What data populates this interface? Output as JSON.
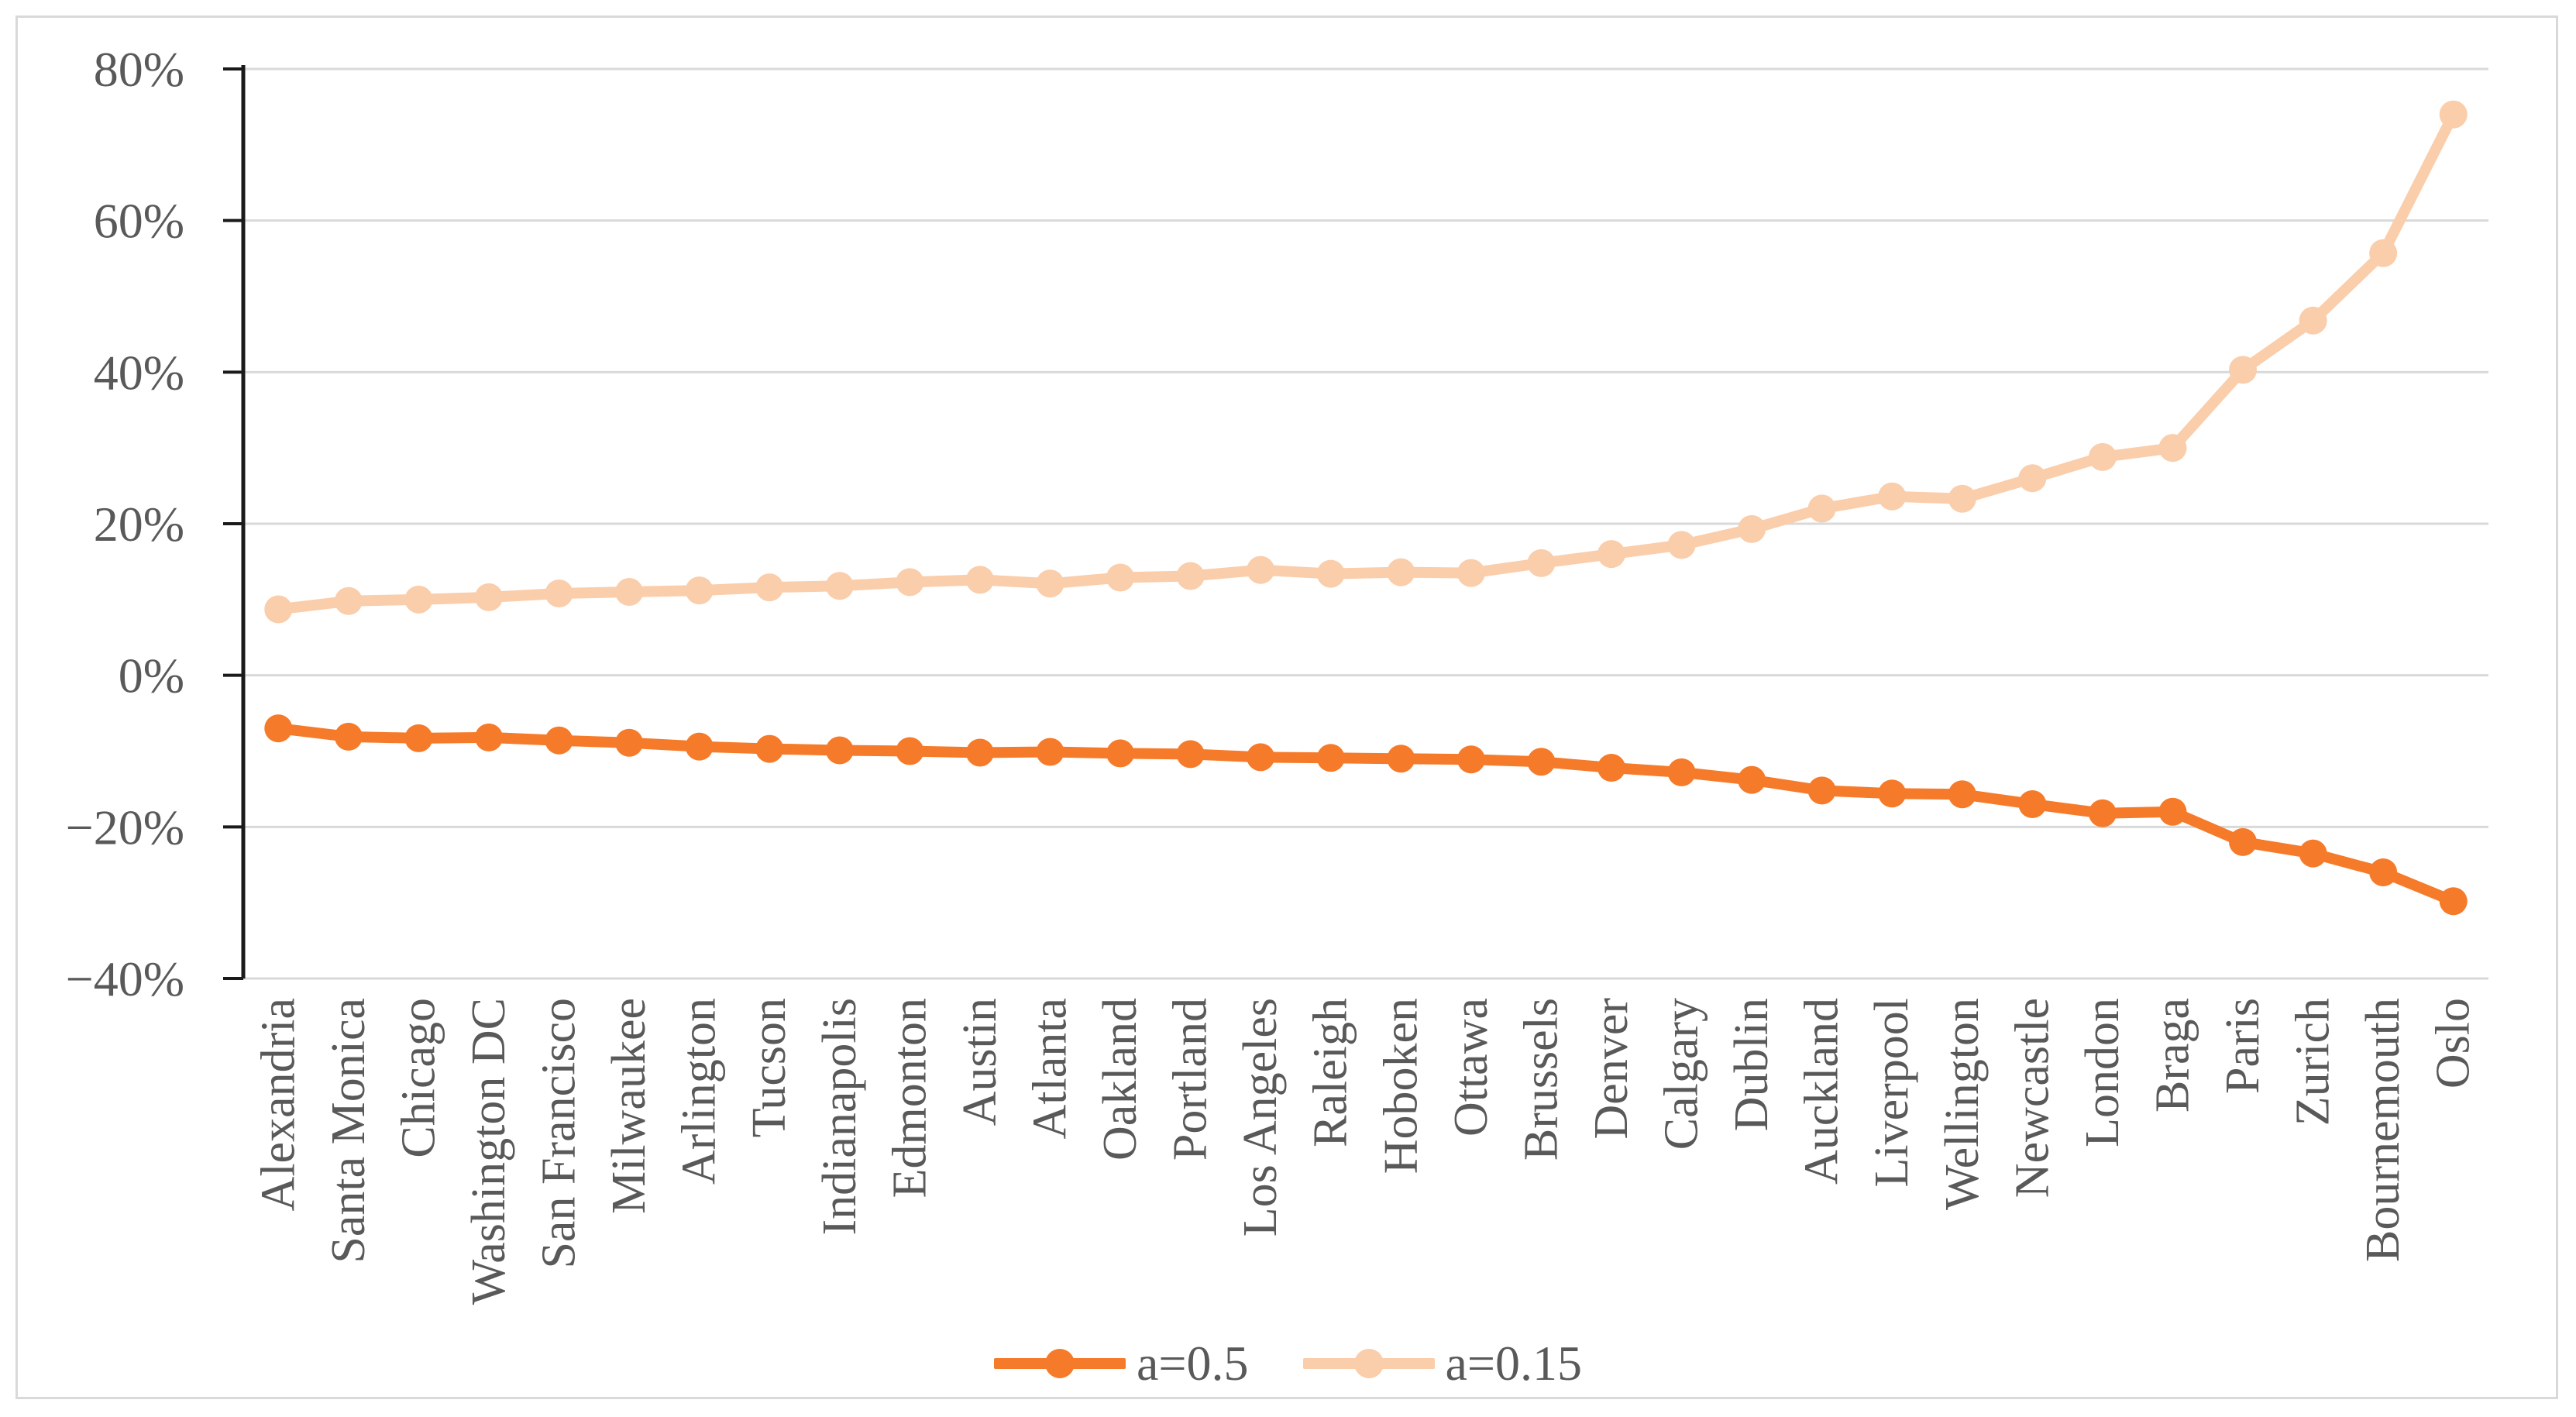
{
  "chart_data": {
    "type": "line",
    "title": "",
    "xlabel": "",
    "ylabel": "",
    "categories": [
      "Alexandria",
      "Santa Monica",
      "Chicago",
      "Washington DC",
      "San Francisco",
      "Milwaukee",
      "Arlington",
      "Tucson",
      "Indianapolis",
      "Edmonton",
      "Austin",
      "Atlanta",
      "Oakland",
      "Portland",
      "Los Angeles",
      "Raleigh",
      "Hoboken",
      "Ottawa",
      "Brussels",
      "Denver",
      "Calgary",
      "Dublin",
      "Auckland",
      "Liverpool",
      "Wellington",
      "Newcastle",
      "London",
      "Braga",
      "Paris",
      "Zurich",
      "Bournemouth",
      "Oslo"
    ],
    "series": [
      {
        "name": "a=0.5",
        "color": "#F57B2A",
        "marker": "circle",
        "values": [
          -7.0,
          -8.1,
          -8.3,
          -8.2,
          -8.6,
          -8.9,
          -9.4,
          -9.7,
          -9.9,
          -10.0,
          -10.2,
          -10.1,
          -10.3,
          -10.4,
          -10.8,
          -10.9,
          -11.0,
          -11.1,
          -11.4,
          -12.2,
          -12.8,
          -13.8,
          -15.2,
          -15.6,
          -15.7,
          -17.0,
          -18.2,
          -18.0,
          -22.0,
          -23.5,
          -26.0,
          -29.8
        ]
      },
      {
        "name": "a=0.15",
        "color": "#FACDAB",
        "marker": "circle",
        "values": [
          8.7,
          9.8,
          10.0,
          10.3,
          10.8,
          11.0,
          11.2,
          11.6,
          11.8,
          12.3,
          12.6,
          12.1,
          12.9,
          13.1,
          13.9,
          13.4,
          13.6,
          13.5,
          14.8,
          16.0,
          17.2,
          19.3,
          22.0,
          23.6,
          23.3,
          26.0,
          28.8,
          30.0,
          40.3,
          46.8,
          55.7,
          74.0
        ]
      }
    ],
    "ylim": [
      -40,
      80
    ],
    "ytick_step": 20,
    "ytick_labels": [
      "80%",
      "60%",
      "40%",
      "20%",
      "0%",
      "−20%",
      "−40%"
    ],
    "grid": "horizontal",
    "legend_position": "bottom-center",
    "colors": {
      "axis_line": "#1a1a1a",
      "gridline": "#d9d9d9",
      "tick_label": "#595959",
      "category_label": "#595959",
      "chart_border": "#d9d9d9",
      "background": "#ffffff"
    }
  }
}
